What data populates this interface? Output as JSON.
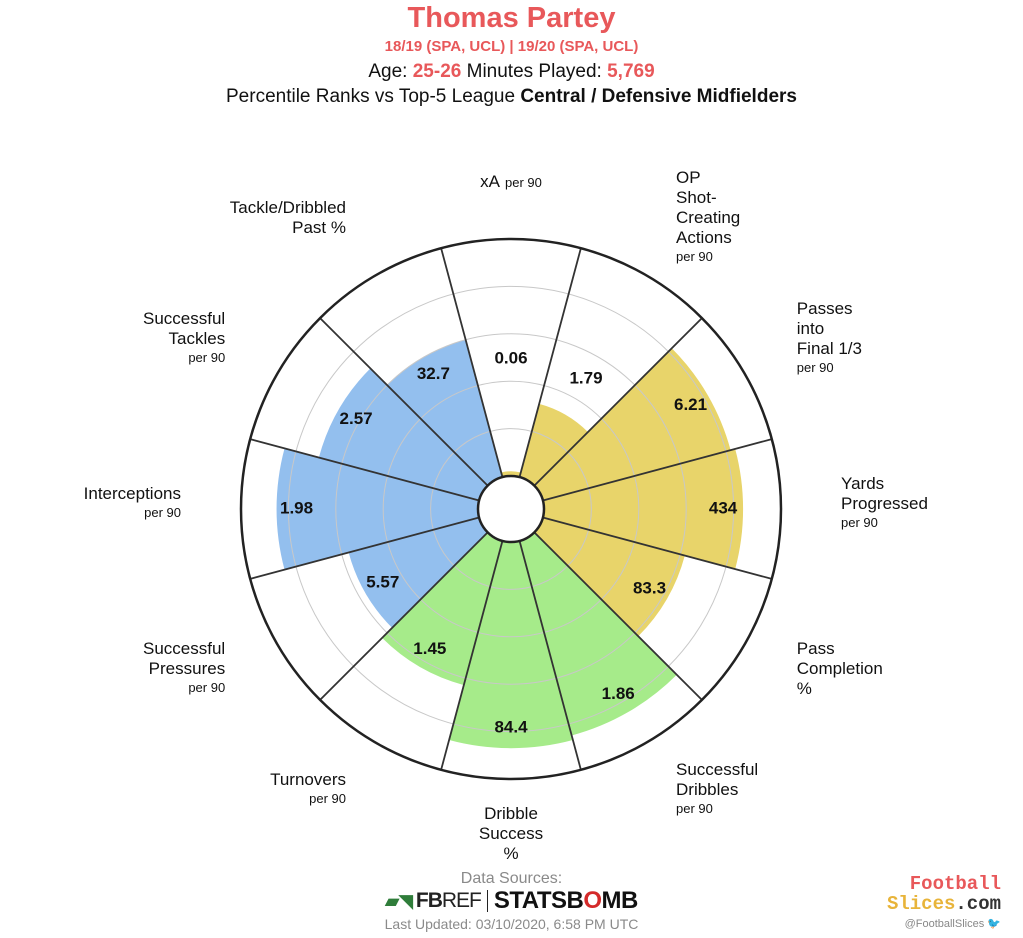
{
  "header": {
    "player_name": "Thomas Partey",
    "seasons": "18/19 (SPA, UCL)  | 19/20 (SPA, UCL)",
    "age_label": "Age:",
    "age_value": "25-26",
    "minutes_label": "Minutes Played:",
    "minutes_value": "5,769",
    "percentile_prefix": "Percentile Ranks vs Top-5 League",
    "position_group": "Central / Defensive Midfielders"
  },
  "colors": {
    "accent": "#e8585a",
    "attacking": "#e8d46a",
    "possession": "#a6eb8a",
    "defending": "#93bfee"
  },
  "chart_data": {
    "type": "polar-bar",
    "scale": [
      0,
      100
    ],
    "rings": [
      20,
      40,
      60,
      80
    ],
    "metrics": [
      {
        "label": "xA",
        "unit": "per 90",
        "value_label": "0.06",
        "percentile": 2,
        "group": "attacking"
      },
      {
        "label": "OP Shot- Creating Actions",
        "unit": "per 90",
        "value_label": "1.79",
        "percentile": 32,
        "group": "attacking"
      },
      {
        "label": "Passes into Final 1/3",
        "unit": "per 90",
        "value_label": "6.21",
        "percentile": 82,
        "group": "attacking"
      },
      {
        "label": "Yards Progressed",
        "unit": "per 90",
        "value_label": "434",
        "percentile": 84,
        "group": "attacking"
      },
      {
        "label": "Pass Completion %",
        "unit": "",
        "value_label": "83.3",
        "percentile": 62,
        "group": "attacking"
      },
      {
        "label": "Successful Dribbles",
        "unit": "per 90",
        "value_label": "1.86",
        "percentile": 85,
        "group": "possession"
      },
      {
        "label": "Dribble Success %",
        "unit": "",
        "value_label": "84.4",
        "percentile": 87,
        "group": "possession"
      },
      {
        "label": "Turnovers",
        "unit": "per 90",
        "value_label": "1.45",
        "percentile": 63,
        "group": "possession"
      },
      {
        "label": "Successful Pressures",
        "unit": "per 90",
        "value_label": "5.57",
        "percentile": 57,
        "group": "defending"
      },
      {
        "label": "Interceptions",
        "unit": "per 90",
        "value_label": "1.98",
        "percentile": 85,
        "group": "defending"
      },
      {
        "label": "Successful Tackles",
        "unit": "per 90",
        "value_label": "2.57",
        "percentile": 70,
        "group": "defending"
      },
      {
        "label": "Tackle/Dribbled Past %",
        "unit": "",
        "value_label": "32.7",
        "percentile": 60,
        "group": "defending"
      }
    ]
  },
  "footer": {
    "sources_label": "Data Sources:",
    "fbref_bold": "FB",
    "fbref_thin": "REF",
    "statsbomb_a": "STATSB",
    "statsbomb_o": "O",
    "statsbomb_b": "MB",
    "last_updated": "Last Updated: 03/10/2020, 6:58 PM UTC"
  },
  "brand": {
    "line1": "Football",
    "line2_a": "Slices",
    "line2_b": ".com",
    "handle": "@FootballSlices",
    "twitter_icon": "twitter-bird-icon"
  }
}
